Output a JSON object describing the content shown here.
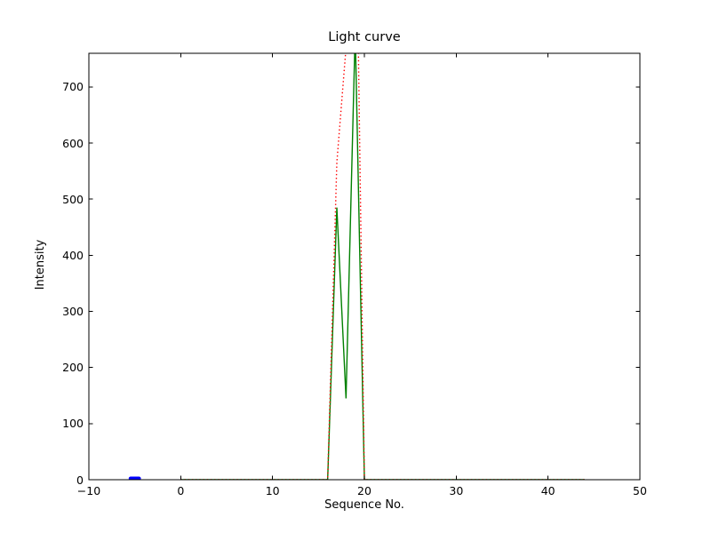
{
  "figure": {
    "background": "#ffffff",
    "spine_color": "#000000"
  },
  "chart_data": {
    "type": "line",
    "title": "Light curve",
    "xlabel": "Sequence No.",
    "ylabel": "Intensity",
    "xlim": [
      -10,
      50
    ],
    "ylim": [
      0,
      760
    ],
    "xticks": [
      -10,
      0,
      10,
      20,
      30,
      40,
      50
    ],
    "xtick_labels": [
      "−10",
      "0",
      "10",
      "20",
      "30",
      "40",
      "50"
    ],
    "yticks": [
      0,
      100,
      200,
      300,
      400,
      500,
      600,
      700
    ],
    "ytick_labels": [
      "0",
      "100",
      "200",
      "300",
      "400",
      "500",
      "600",
      "700"
    ],
    "grid": false,
    "legend": null,
    "tick_style": "inward-all-four-spines",
    "series": [
      {
        "name": "green-solid-curve",
        "color": "#008000",
        "style": "solid",
        "linewidth": 1.4,
        "points": [
          [
            0,
            0
          ],
          [
            16,
            0
          ],
          [
            17,
            485
          ],
          [
            18,
            145
          ],
          [
            19,
            800
          ],
          [
            20,
            0
          ],
          [
            44,
            0
          ]
        ],
        "note": "main peak clipped at top of axes (~760)"
      },
      {
        "name": "red-dotted-curve",
        "color": "#ff0000",
        "style": "dotted",
        "linewidth": 1.4,
        "points": [
          [
            0,
            0
          ],
          [
            16,
            0
          ],
          [
            17,
            565
          ],
          [
            18,
            770
          ],
          [
            19,
            1170
          ],
          [
            20,
            0
          ],
          [
            44,
            0
          ]
        ],
        "note": "peak clipped at top of axes between x≈18.0 and x≈19.35"
      },
      {
        "name": "blue-thick-marker",
        "color": "#0000ff",
        "style": "solid-thick",
        "linewidth": 4.5,
        "points": [
          [
            -5.45,
            2
          ],
          [
            -4.55,
            2
          ]
        ]
      }
    ]
  }
}
